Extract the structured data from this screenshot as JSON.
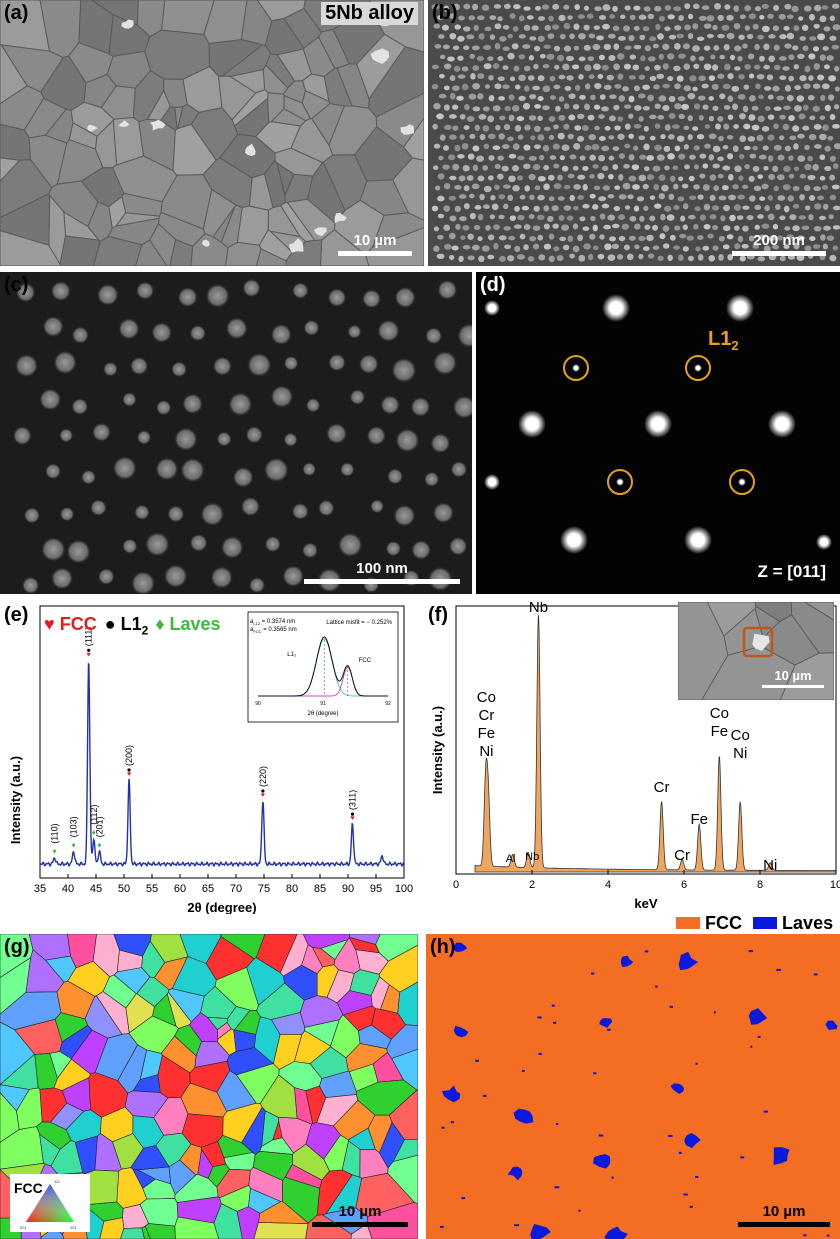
{
  "panels": {
    "a": {
      "label": "(a)",
      "title": "5Nb alloy",
      "scale": "10 µm"
    },
    "b": {
      "label": "(b)",
      "scale": "200 nm"
    },
    "c": {
      "label": "(c)",
      "scale": "100 nm"
    },
    "d": {
      "label": "(d)",
      "spot_label": "L1",
      "spot_label_sub": "2",
      "zone_axis": "Z = [011]",
      "ring_color": "#e3a21a"
    },
    "e": {
      "label": "(e)",
      "legend": {
        "fcc_symbol": "♥",
        "fcc": "FCC",
        "l12_symbol": "●",
        "l12": "L1",
        "l12_sub": "2",
        "laves_symbol": "♦",
        "laves": "Laves"
      },
      "inset": {
        "a_l12": "a",
        "a_l12_sub": "L12",
        "a_l12_val": " = 0.3574 nm",
        "a_fcc": "a",
        "a_fcc_sub": "FCC",
        "a_fcc_val": " = 0.3565 nm",
        "misfit": "Lattice misfit = − 0.252%",
        "curve_l12": "L1₂",
        "curve_fcc": "FCC",
        "xlabel": "2θ (degree)",
        "ticks": [
          "90",
          "91",
          "92"
        ]
      }
    },
    "f": {
      "label": "(f)",
      "inset_scale": "10 µm"
    },
    "g": {
      "label": "(g)",
      "scale": "10 µm",
      "key_label": "FCC",
      "key_corners": [
        "111",
        "001",
        "101"
      ]
    },
    "h": {
      "label": "(h)",
      "scale": "10 µm",
      "legend": [
        {
          "name": "FCC",
          "color": "#f36d22"
        },
        {
          "name": "Laves",
          "color": "#0a1adc"
        }
      ]
    }
  },
  "chart_data": [
    {
      "type": "line",
      "xlabel": "2θ (degree)",
      "ylabel": "Intensity (a.u.)",
      "xlim": [
        35,
        100
      ],
      "xticks": [
        "35",
        "40",
        "45",
        "50",
        "55",
        "60",
        "65",
        "70",
        "75",
        "80",
        "85",
        "90",
        "95",
        "100"
      ],
      "line_color": "#2233aa",
      "peaks": [
        {
          "x": 37.6,
          "h": 0.03,
          "label": "(110)",
          "marker": "laves"
        },
        {
          "x": 41.0,
          "h": 0.06,
          "label": "(103)",
          "marker": "laves"
        },
        {
          "x": 43.7,
          "h": 0.97,
          "label": "(111)",
          "marker": "fcc_l12"
        },
        {
          "x": 44.6,
          "h": 0.12,
          "label": "(112)",
          "marker": "laves"
        },
        {
          "x": 45.6,
          "h": 0.06,
          "label": "(201)",
          "marker": "laves"
        },
        {
          "x": 50.9,
          "h": 0.4,
          "label": "(200)",
          "marker": "fcc_l12"
        },
        {
          "x": 74.8,
          "h": 0.3,
          "label": "(220)",
          "marker": "fcc_l12"
        },
        {
          "x": 90.8,
          "h": 0.19,
          "label": "(311)",
          "marker": "fcc_l12"
        },
        {
          "x": 96.1,
          "h": 0.04,
          "label": "",
          "marker": "none"
        }
      ]
    },
    {
      "type": "area",
      "xlabel": "keV",
      "ylabel": "Intensity (a.u.)",
      "xlim": [
        0,
        10
      ],
      "xticks": [
        "0",
        "2",
        "4",
        "6",
        "8",
        "10"
      ],
      "fill_color": "#f0a560",
      "peaks": [
        {
          "x": 0.78,
          "h": 0.33
        },
        {
          "x": 0.85,
          "h": 0.26
        },
        {
          "x": 1.49,
          "h": 0.05
        },
        {
          "x": 1.9,
          "h": 0.06
        },
        {
          "x": 2.17,
          "h": 1.0
        },
        {
          "x": 5.41,
          "h": 0.27
        },
        {
          "x": 5.95,
          "h": 0.04
        },
        {
          "x": 6.4,
          "h": 0.18
        },
        {
          "x": 6.93,
          "h": 0.45
        },
        {
          "x": 7.48,
          "h": 0.27
        },
        {
          "x": 8.27,
          "h": 0.03
        }
      ],
      "annotations": [
        {
          "lines": [
            "Co",
            "Cr",
            "Fe",
            "Ni"
          ],
          "x": 0.8
        },
        {
          "lines": [
            "Al"
          ],
          "x": 1.49
        },
        {
          "lines": [
            "Nb"
          ],
          "x": 1.9
        },
        {
          "lines": [
            "Nb"
          ],
          "x": 2.17
        },
        {
          "lines": [
            "Cr"
          ],
          "x": 5.41
        },
        {
          "lines": [
            "Cr"
          ],
          "x": 5.95
        },
        {
          "lines": [
            "Fe"
          ],
          "x": 6.4
        },
        {
          "lines": [
            "Co",
            "Fe"
          ],
          "x": 6.93
        },
        {
          "lines": [
            "Co",
            "Ni"
          ],
          "x": 7.48
        },
        {
          "lines": [
            "Ni"
          ],
          "x": 8.27
        }
      ]
    }
  ]
}
